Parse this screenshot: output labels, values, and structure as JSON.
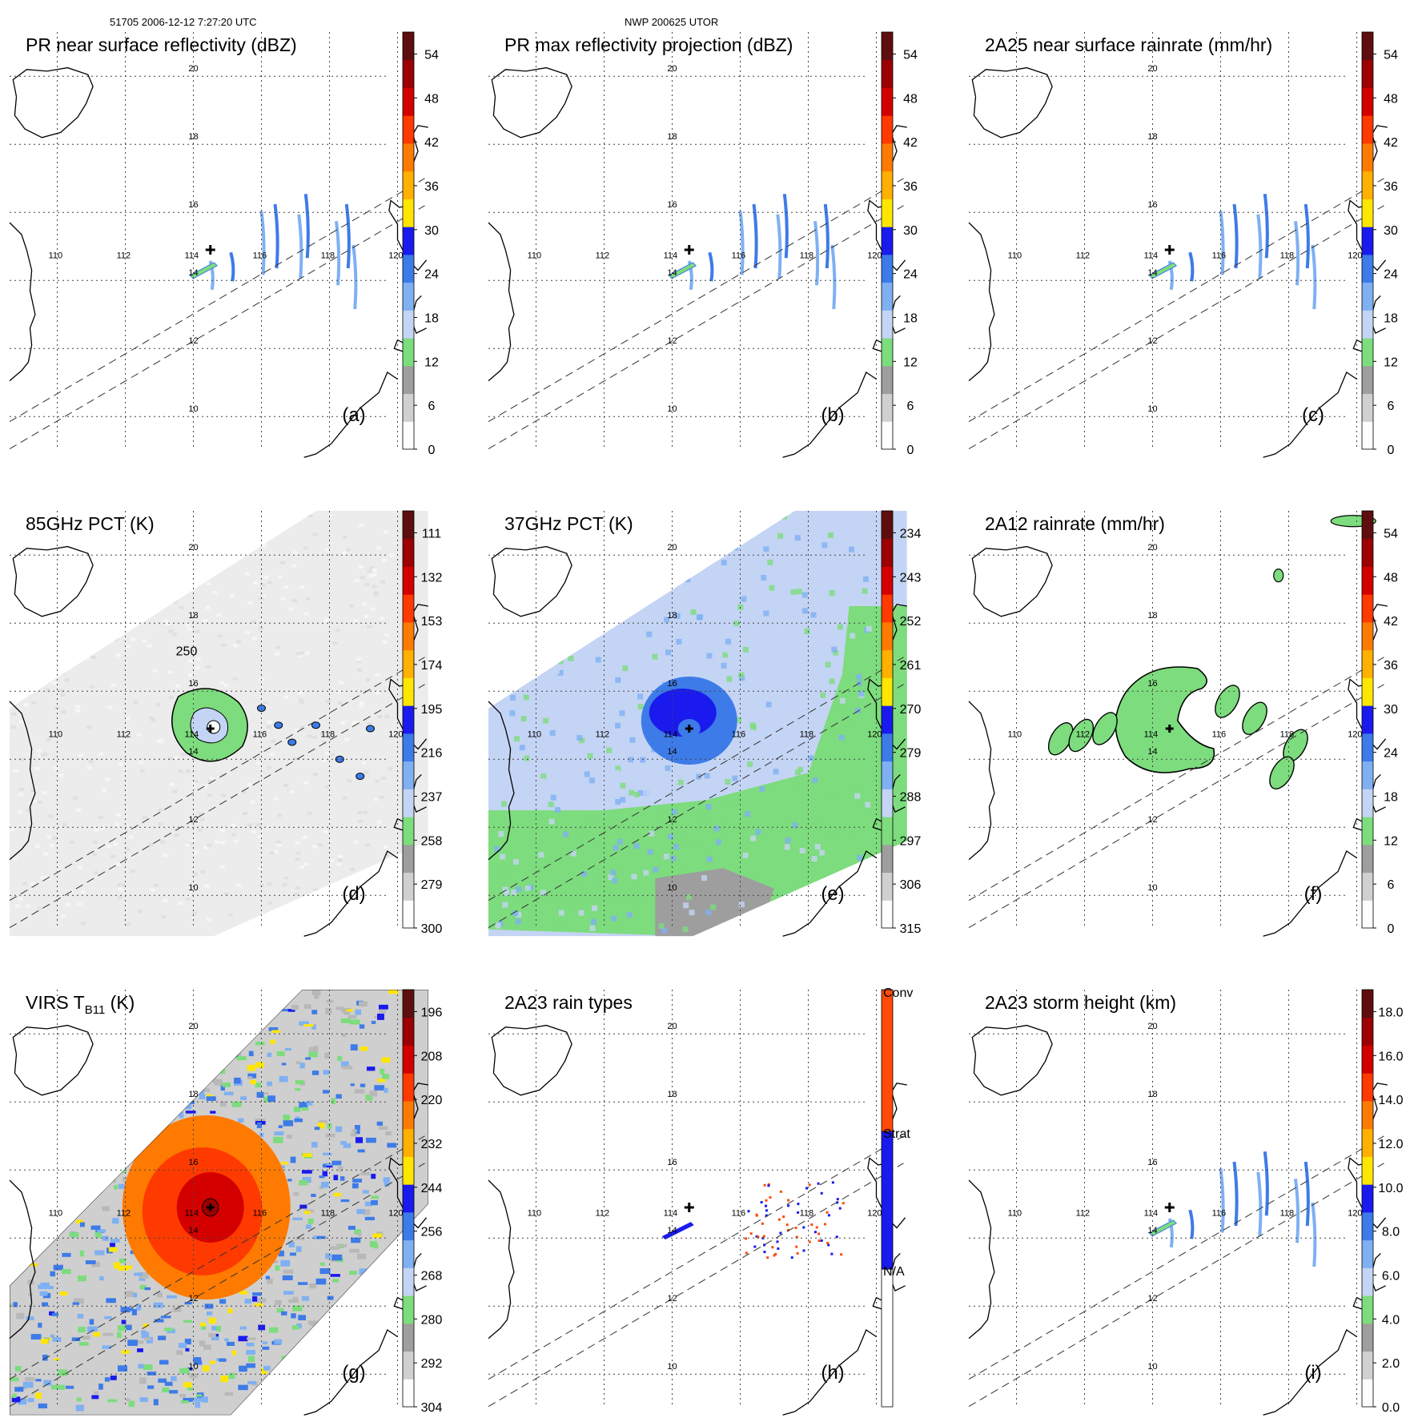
{
  "header": {
    "left": "51705 2006-12-12 7:27:20 UTC",
    "center": "NWP 200625 UTOR"
  },
  "map": {
    "lon_labels": [
      "110",
      "112",
      "114",
      "116",
      "118",
      "120"
    ],
    "lat_labels": [
      "10",
      "12",
      "14",
      "16",
      "18",
      "20"
    ],
    "storm_center": {
      "lon": 114.5,
      "lat": 14.9
    }
  },
  "panels": [
    {
      "id": "a",
      "title": "PR near surface reflectivity (dBZ)",
      "letter": "(a)",
      "field": "pr_swath",
      "ticks": [
        "0",
        "6",
        "12",
        "18",
        "24",
        "30",
        "36",
        "42",
        "48",
        "54"
      ]
    },
    {
      "id": "b",
      "title": "PR max reflectivity projection (dBZ)",
      "letter": "(b)",
      "field": "pr_swath",
      "ticks": [
        "0",
        "6",
        "12",
        "18",
        "24",
        "30",
        "36",
        "42",
        "48",
        "54"
      ]
    },
    {
      "id": "c",
      "title": "2A25 near surface rainrate (mm/hr)",
      "letter": "(c)",
      "field": "pr_swath",
      "ticks": [
        "0",
        "6",
        "12",
        "18",
        "24",
        "30",
        "36",
        "42",
        "48",
        "54"
      ]
    },
    {
      "id": "d",
      "title": "85GHz PCT (K)",
      "letter": "(d)",
      "field": "tmi_85",
      "ticks": [
        "300",
        "279",
        "258",
        "237",
        "216",
        "195",
        "174",
        "153",
        "132",
        "111"
      ],
      "annotation": "250"
    },
    {
      "id": "e",
      "title": "37GHz PCT (K)",
      "letter": "(e)",
      "field": "tmi_37",
      "ticks": [
        "315",
        "306",
        "297",
        "288",
        "279",
        "270",
        "261",
        "252",
        "243",
        "234"
      ]
    },
    {
      "id": "f",
      "title": "2A12 rainrate (mm/hr)",
      "letter": "(f)",
      "field": "tmi_rain",
      "ticks": [
        "0",
        "6",
        "12",
        "18",
        "24",
        "30",
        "36",
        "42",
        "48",
        "54"
      ]
    },
    {
      "id": "g",
      "title_main": "VIRS T",
      "title_sub": "B11",
      "title_tail": " (K)",
      "letter": "(g)",
      "field": "virs",
      "ticks": [
        "304",
        "292",
        "280",
        "268",
        "256",
        "244",
        "232",
        "220",
        "208",
        "196"
      ]
    },
    {
      "id": "h",
      "title": "2A23 rain types",
      "letter": "(h)",
      "field": "rain_types",
      "type_labels": [
        "N/A",
        "Strat",
        "Conv"
      ]
    },
    {
      "id": "i",
      "title": "2A23 storm height (km)",
      "letter": "(i)",
      "field": "pr_swath",
      "ticks": [
        "0.0",
        "2.0",
        "4.0",
        "6.0",
        "8.0",
        "10.0",
        "12.0",
        "14.0",
        "16.0",
        "18.0"
      ]
    }
  ],
  "colors": {
    "scale": [
      "#fdfdfd",
      "#d0d0d0",
      "#9e9e9e",
      "#7ddc7d",
      "#c4d4f4",
      "#7fb0f2",
      "#3d7be8",
      "#1a1aee",
      "#ffe600",
      "#ffb000",
      "#ff7a00",
      "#ff3a00",
      "#d40000",
      "#9c0000",
      "#5e0e0e"
    ],
    "rain_types": [
      "#ffffff",
      "#1a1aee",
      "#ff4a0a"
    ]
  }
}
